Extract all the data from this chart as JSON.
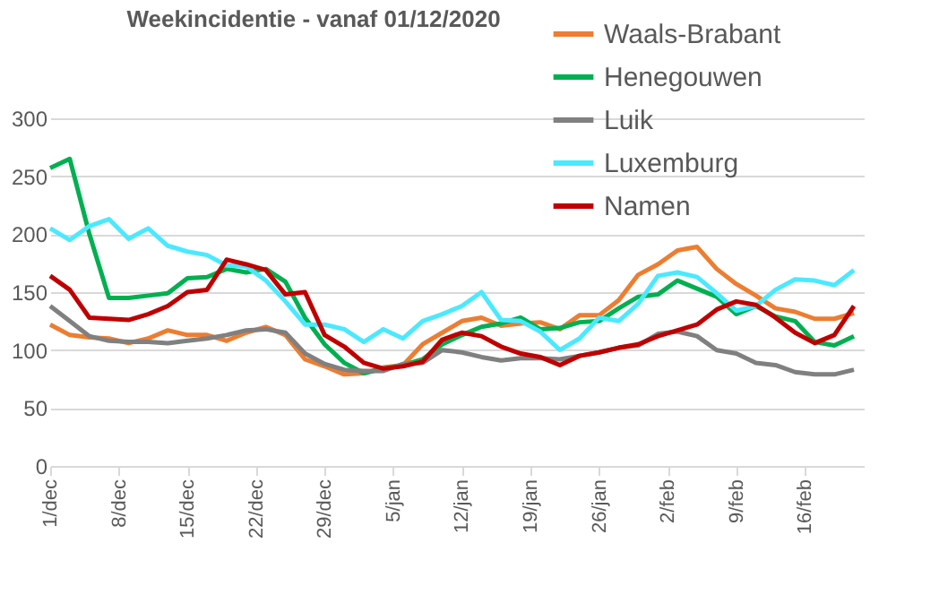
{
  "chart_data": {
    "type": "line",
    "title": "Weekincidentie  - vanaf 01/12/2020",
    "x": [
      "2020-12-01",
      "2020-12-03",
      "2020-12-05",
      "2020-12-07",
      "2020-12-09",
      "2020-12-11",
      "2020-12-13",
      "2020-12-15",
      "2020-12-17",
      "2020-12-19",
      "2020-12-21",
      "2020-12-23",
      "2020-12-25",
      "2020-12-27",
      "2020-12-29",
      "2020-12-31",
      "2021-01-02",
      "2021-01-04",
      "2021-01-06",
      "2021-01-08",
      "2021-01-10",
      "2021-01-12",
      "2021-01-14",
      "2021-01-16",
      "2021-01-18",
      "2021-01-20",
      "2021-01-22",
      "2021-01-24",
      "2021-01-26",
      "2021-01-28",
      "2021-01-30",
      "2021-02-01",
      "2021-02-03",
      "2021-02-05",
      "2021-02-07",
      "2021-02-09",
      "2021-02-11",
      "2021-02-13",
      "2021-02-15",
      "2021-02-17",
      "2021-02-19",
      "2021-02-21"
    ],
    "series": [
      {
        "name": "Waals-Brabant",
        "color": "#ed7d31",
        "values": [
          122,
          113,
          111,
          110,
          106,
          110,
          117,
          113,
          113,
          108,
          115,
          120,
          113,
          92,
          86,
          79,
          80,
          85,
          87,
          105,
          115,
          125,
          128,
          121,
          123,
          124,
          118,
          130,
          130,
          143,
          165,
          174,
          186,
          189,
          170,
          157,
          147,
          136,
          133,
          127,
          127,
          132
        ]
      },
      {
        "name": "Henegouwen",
        "color": "#00b050",
        "values": [
          257,
          265,
          200,
          145,
          145,
          147,
          149,
          162,
          163,
          170,
          167,
          170,
          159,
          128,
          105,
          89,
          80,
          84,
          87,
          92,
          105,
          113,
          120,
          123,
          128,
          118,
          119,
          124,
          125,
          136,
          146,
          148,
          160,
          153,
          146,
          131,
          138,
          129,
          125,
          107,
          104,
          112
        ]
      },
      {
        "name": "Luik",
        "color": "#808080",
        "values": [
          138,
          125,
          112,
          108,
          107,
          107,
          106,
          108,
          110,
          113,
          117,
          118,
          115,
          97,
          88,
          83,
          82,
          82,
          88,
          89,
          100,
          98,
          94,
          91,
          93,
          93,
          92,
          95,
          98,
          102,
          104,
          114,
          116,
          112,
          100,
          97,
          89,
          87,
          81,
          79,
          79,
          83
        ]
      },
      {
        "name": "Luxemburg",
        "color": "#4be9ff",
        "values": [
          205,
          195,
          207,
          213,
          196,
          205,
          190,
          185,
          182,
          173,
          172,
          160,
          142,
          122,
          122,
          118,
          107,
          118,
          110,
          125,
          131,
          138,
          150,
          126,
          125,
          116,
          100,
          110,
          128,
          125,
          140,
          164,
          167,
          163,
          149,
          134,
          138,
          152,
          161,
          160,
          156,
          169
        ]
      },
      {
        "name": "Namen",
        "color": "#c00000",
        "values": [
          164,
          152,
          128,
          127,
          126,
          131,
          138,
          150,
          152,
          178,
          174,
          169,
          148,
          150,
          113,
          103,
          89,
          84,
          86,
          90,
          109,
          115,
          112,
          103,
          97,
          94,
          87,
          95,
          98,
          102,
          105,
          112,
          117,
          122,
          135,
          142,
          139,
          128,
          115,
          106,
          113,
          138
        ]
      }
    ],
    "xlim": [
      "2020-12-01",
      "2021-02-22"
    ],
    "xticks": [
      {
        "value": "2020-12-01",
        "label": "1/dec"
      },
      {
        "value": "2020-12-08",
        "label": "8/dec"
      },
      {
        "value": "2020-12-15",
        "label": "15/dec"
      },
      {
        "value": "2020-12-22",
        "label": "22/dec"
      },
      {
        "value": "2020-12-29",
        "label": "29/dec"
      },
      {
        "value": "2021-01-05",
        "label": "5/jan"
      },
      {
        "value": "2021-01-12",
        "label": "12/jan"
      },
      {
        "value": "2021-01-19",
        "label": "19/jan"
      },
      {
        "value": "2021-01-26",
        "label": "26/jan"
      },
      {
        "value": "2021-02-02",
        "label": "2/feb"
      },
      {
        "value": "2021-02-09",
        "label": "9/feb"
      },
      {
        "value": "2021-02-16",
        "label": "16/feb"
      }
    ],
    "ylim": [
      0,
      300
    ],
    "yticks": [
      0,
      50,
      100,
      150,
      200,
      250,
      300
    ],
    "grid": "y",
    "legend": "top right",
    "line_style": "solid"
  }
}
